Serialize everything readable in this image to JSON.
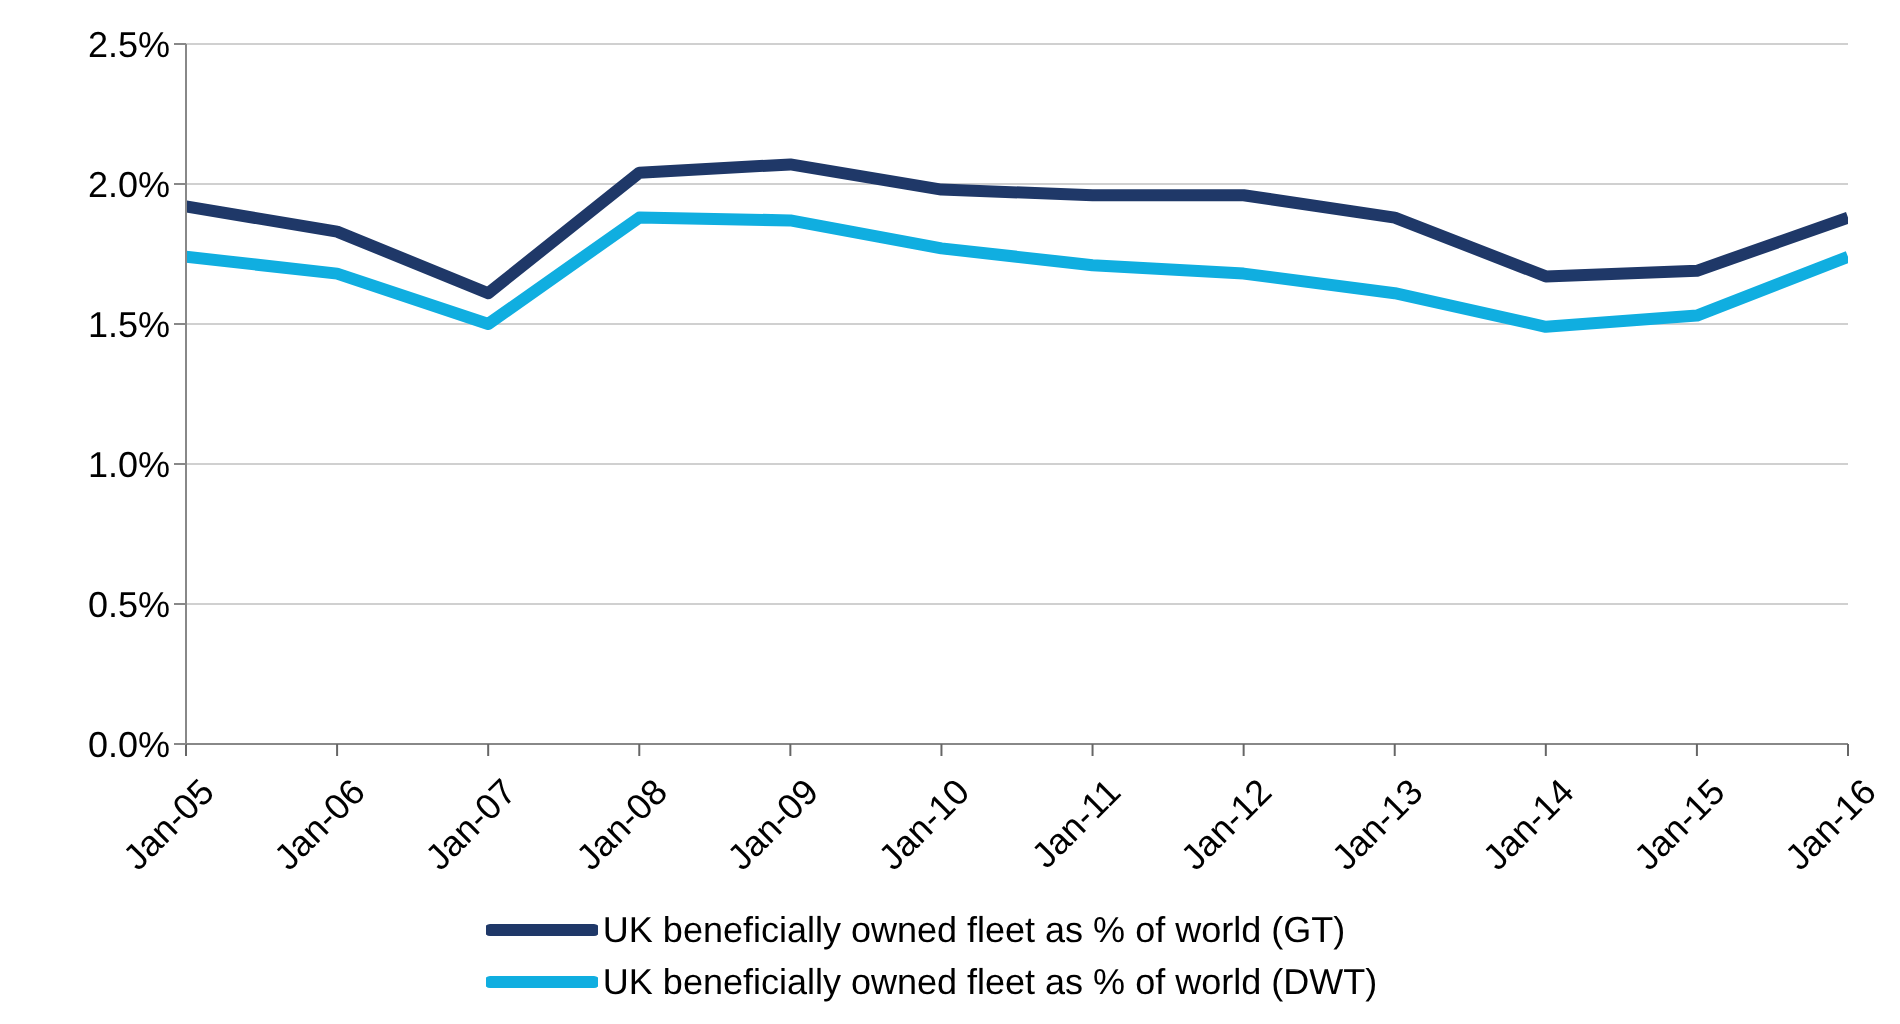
{
  "chart_data": {
    "type": "line",
    "categories": [
      "Jan-05",
      "Jan-06",
      "Jan-07",
      "Jan-08",
      "Jan-09",
      "Jan-10",
      "Jan-11",
      "Jan-12",
      "Jan-13",
      "Jan-14",
      "Jan-15",
      "Jan-16"
    ],
    "series": [
      {
        "name": "UK beneficially owned fleet as % of world (GT)",
        "color": "#1f3868",
        "values": [
          1.92,
          1.83,
          1.61,
          2.04,
          2.07,
          1.98,
          1.96,
          1.96,
          1.88,
          1.67,
          1.69,
          1.88
        ]
      },
      {
        "name": "UK beneficially owned fleet as % of world (DWT)",
        "color": "#10aee0",
        "values": [
          1.74,
          1.68,
          1.5,
          1.88,
          1.87,
          1.77,
          1.71,
          1.68,
          1.61,
          1.49,
          1.53,
          1.74
        ]
      }
    ],
    "ylim": [
      0,
      2.5
    ],
    "yticks": [
      {
        "value": 0,
        "label": "0.0%"
      },
      {
        "value": 0.5,
        "label": "0.5%"
      },
      {
        "value": 1,
        "label": "1.0%"
      },
      {
        "value": 1.5,
        "label": "1.5%"
      },
      {
        "value": 2,
        "label": "2.0%"
      },
      {
        "value": 2.5,
        "label": "2.5%"
      }
    ],
    "grid": "y",
    "legend": "bottom",
    "marker": "none",
    "line_style": "solid"
  }
}
